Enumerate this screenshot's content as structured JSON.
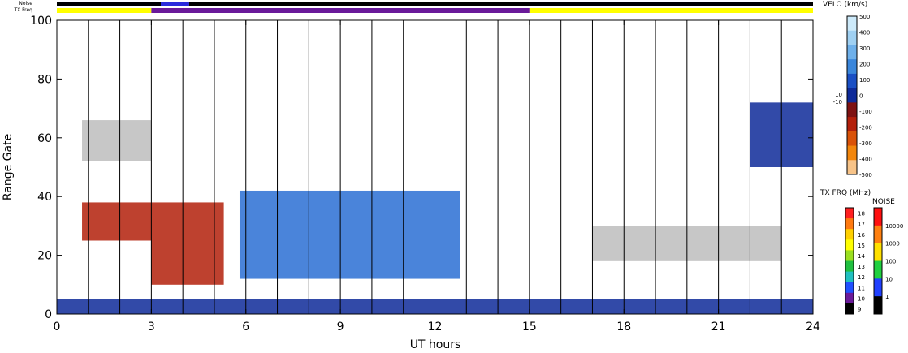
{
  "chart_data": {
    "type": "heatmap",
    "xlabel": "UT hours",
    "ylabel": "Range Gate",
    "xlim": [
      0,
      24
    ],
    "ylim": [
      0,
      100
    ],
    "x_ticks": [
      "0",
      "3",
      "6",
      "9",
      "12",
      "15",
      "18",
      "21",
      "24"
    ],
    "y_ticks": [
      "0",
      "20",
      "40",
      "60",
      "80",
      "100"
    ],
    "scan_markers_hours": [
      1,
      2,
      3,
      4,
      5,
      6,
      7,
      8,
      9,
      10,
      11,
      12,
      13,
      14,
      15,
      16,
      17,
      18,
      19,
      20,
      21,
      22,
      23
    ],
    "strips": {
      "noise_label": "Noise",
      "txfreq_label": "TX Freq",
      "txfreq_segments": [
        {
          "start": 0,
          "end": 3,
          "color": "#ffff00"
        },
        {
          "start": 3,
          "end": 15,
          "color": "#6a1a9a"
        },
        {
          "start": 15,
          "end": 24,
          "color": "#ffff00"
        }
      ],
      "noise_segments": [
        {
          "start": 0,
          "end": 3.3,
          "color": "#000000"
        },
        {
          "start": 3.3,
          "end": 4.2,
          "color": "#2a2adc"
        },
        {
          "start": 4.2,
          "end": 24,
          "color": "#000000"
        }
      ]
    },
    "velocity_scale": {
      "title": "VELO (km/s)",
      "ticks": [
        "500",
        "400",
        "300",
        "200",
        "100",
        "0",
        "-100",
        "-200",
        "-300",
        "-400",
        "-500"
      ],
      "inner_labels": [
        "10",
        "-10"
      ],
      "colors": [
        "#cdeafa",
        "#9fd0f2",
        "#6eb0ea",
        "#3a86db",
        "#1a4fc4",
        "#0e2a99",
        "#7e1212",
        "#b3200b",
        "#d95208",
        "#f2860c",
        "#f7c388"
      ]
    },
    "txfreq_scale": {
      "title": "TX FRQ (MHz)",
      "ticks": [
        "18",
        "17",
        "16",
        "15",
        "14",
        "13",
        "12",
        "11",
        "10",
        "9"
      ],
      "colors": [
        "#ff2020",
        "#ff7a10",
        "#ffd000",
        "#ffff00",
        "#9be020",
        "#20c040",
        "#20c0c0",
        "#2050ff",
        "#6a1a9a",
        "#000000"
      ]
    },
    "noise_scale": {
      "title": "NOISE",
      "ticks": [
        "10000",
        "1000",
        "100",
        "10",
        "1"
      ],
      "colors": [
        "#ff1010",
        "#ff8010",
        "#ffe000",
        "#20d040",
        "#2040ff",
        "#000000"
      ]
    },
    "regions": [
      {
        "name": "ground scatter near range",
        "x": [
          0.0,
          24.0
        ],
        "y": [
          0,
          5
        ],
        "velocity": "mixed"
      },
      {
        "name": "positive flow patch",
        "x": [
          5.8,
          12.8
        ],
        "y": [
          12,
          42
        ],
        "velocity": "positive 100-400"
      },
      {
        "name": "negative flow 3-5 UT",
        "x": [
          3.0,
          5.3
        ],
        "y": [
          10,
          38
        ],
        "velocity": "-150 to -250"
      },
      {
        "name": "negative flow early",
        "x": [
          0.8,
          3.0
        ],
        "y": [
          25,
          38
        ],
        "velocity": "-200 to -300"
      },
      {
        "name": "ground scatter far range",
        "x": [
          0.8,
          3.0
        ],
        "y": [
          52,
          66
        ],
        "velocity": "ground scatter"
      },
      {
        "name": "ground scatter 18-23 UT",
        "x": [
          17.0,
          23.0
        ],
        "y": [
          18,
          30
        ],
        "velocity": "ground scatter"
      },
      {
        "name": "afternoon high range echoes",
        "x": [
          22.0,
          24.0
        ],
        "y": [
          50,
          72
        ],
        "velocity": "mixed"
      }
    ]
  }
}
